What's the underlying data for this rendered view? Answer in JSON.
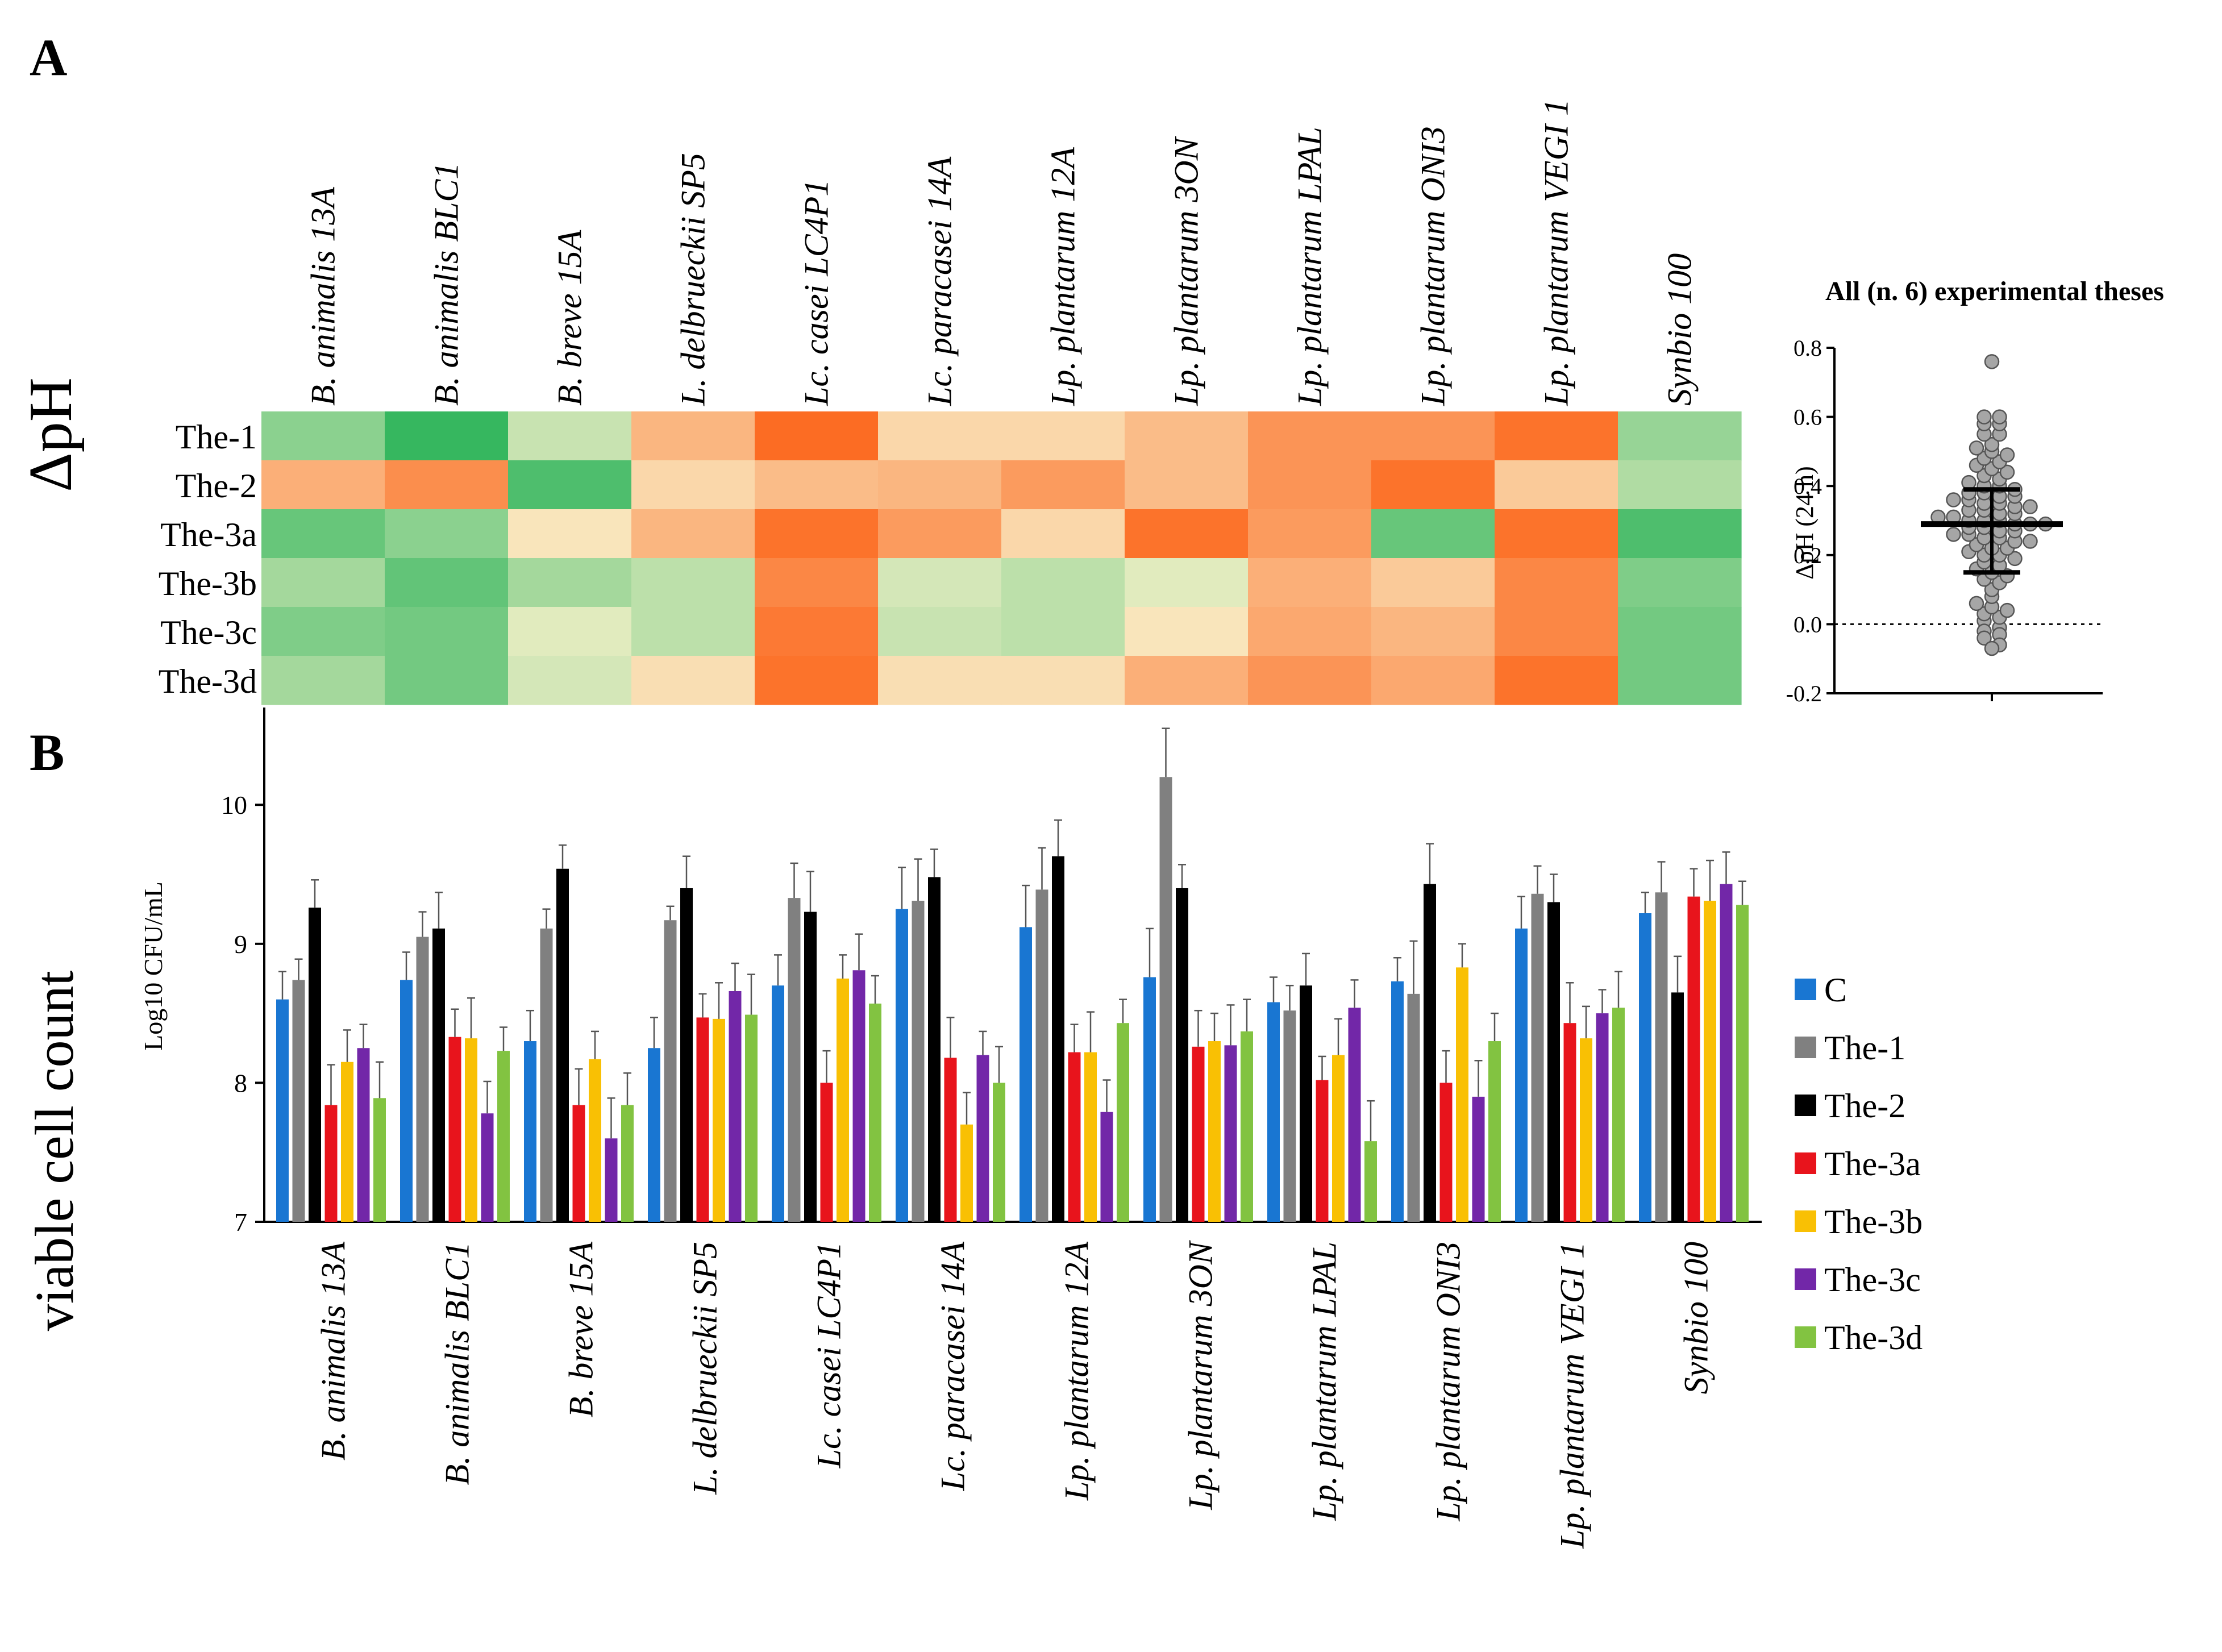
{
  "figure": {
    "panel_a_letter": "A",
    "panel_b_letter": "B",
    "panel_a_side_label": "ΔpH",
    "panel_b_side_label": "viable cell count"
  },
  "chart_data": [
    {
      "type": "heatmap",
      "panel": "A",
      "title": "",
      "columns": [
        "B. animalis 13A",
        "B. animalis BLC1",
        "B. breve 15A",
        "L. delbrueckii SP5",
        "Lc. casei LC4P1",
        "Lc. paracasei 14A",
        "Lp. plantarum 12A",
        "Lp. plantarum 3ON",
        "Lp. plantarum LPAL",
        "Lp. plantarum ONI3",
        "Lp. plantarum VEGI 1",
        "Synbio 100"
      ],
      "rows": [
        "The-1",
        "The-2",
        "The-3a",
        "The-3b",
        "The-3c",
        "The-3d"
      ],
      "color_scale": {
        "low": "#f9f2cc",
        "high_green": "#05a844",
        "high_orange": "#fc6c23"
      },
      "values": [
        [
          0.45,
          0.8,
          0.2,
          -0.45,
          -1.0,
          -0.2,
          -0.2,
          -0.4,
          -0.7,
          -0.7,
          -0.95,
          0.4
        ],
        [
          -0.5,
          -0.75,
          0.7,
          -0.2,
          -0.4,
          -0.45,
          -0.65,
          -0.4,
          -0.7,
          -0.95,
          -0.3,
          0.3
        ],
        [
          0.6,
          0.45,
          -0.1,
          -0.45,
          -0.95,
          -0.65,
          -0.2,
          -0.95,
          -0.65,
          0.6,
          -0.95,
          0.7
        ],
        [
          0.35,
          0.62,
          0.35,
          0.25,
          -0.8,
          0.15,
          0.25,
          0.1,
          -0.5,
          -0.3,
          -0.8,
          0.5
        ],
        [
          0.5,
          0.55,
          0.1,
          0.25,
          -0.9,
          0.2,
          0.25,
          -0.1,
          -0.55,
          -0.45,
          -0.8,
          0.55
        ],
        [
          0.35,
          0.55,
          0.15,
          -0.15,
          -0.95,
          -0.15,
          -0.15,
          -0.5,
          -0.7,
          -0.55,
          -0.95,
          0.55
        ]
      ]
    },
    {
      "type": "scatter",
      "panel": "A",
      "title": "All (n. 6) experimental theses",
      "xlabel": "",
      "ylabel": "ΔpH (24 h)",
      "ylim": [
        -0.2,
        0.8
      ],
      "yticks": [
        "0.8",
        "0.6",
        "0.4",
        "0.2",
        "0.0",
        "-0.2"
      ],
      "reference_line": 0.0,
      "median": 0.29,
      "q1": 0.15,
      "q3": 0.39,
      "values": [
        0.76,
        0.6,
        0.6,
        0.58,
        0.58,
        0.55,
        0.55,
        0.52,
        0.51,
        0.5,
        0.49,
        0.48,
        0.47,
        0.46,
        0.45,
        0.44,
        0.43,
        0.42,
        0.41,
        0.4,
        0.4,
        0.39,
        0.38,
        0.38,
        0.37,
        0.37,
        0.36,
        0.36,
        0.35,
        0.35,
        0.34,
        0.34,
        0.33,
        0.33,
        0.32,
        0.32,
        0.31,
        0.31,
        0.3,
        0.3,
        0.3,
        0.29,
        0.29,
        0.29,
        0.28,
        0.28,
        0.27,
        0.27,
        0.26,
        0.26,
        0.25,
        0.25,
        0.24,
        0.24,
        0.23,
        0.22,
        0.22,
        0.21,
        0.2,
        0.2,
        0.19,
        0.18,
        0.17,
        0.16,
        0.15,
        0.14,
        0.13,
        0.12,
        0.1,
        0.08,
        0.06,
        0.05,
        0.04,
        0.03,
        0.02,
        0.01,
        -0.01,
        -0.02,
        -0.03,
        -0.04,
        -0.06,
        -0.07
      ]
    },
    {
      "type": "bar",
      "panel": "B",
      "title": "",
      "xlabel": "",
      "ylabel": "Log10 CFU/mL",
      "ylim": [
        7,
        10.7
      ],
      "yticks": [
        "10",
        "9",
        "8",
        "7"
      ],
      "legend_position": "right",
      "categories": [
        "B. animalis 13A",
        "B. animalis BLC1",
        "B. breve 15A",
        "L. delbrueckii SP5",
        "Lc. casei LC4P1",
        "Lc. paracasei 14A",
        "Lp. plantarum 12A",
        "Lp. plantarum 3ON",
        "Lp. plantarum LPAL",
        "Lp. plantarum ONI3",
        "Lp. plantarum VEGI 1",
        "Synbio 100"
      ],
      "series": [
        {
          "name": "C",
          "color": "#1976d2",
          "values": [
            8.6,
            8.74,
            8.3,
            8.25,
            8.7,
            9.25,
            9.12,
            8.76,
            8.58,
            8.73,
            9.11,
            9.22
          ],
          "errors": [
            0.2,
            0.2,
            0.22,
            0.22,
            0.22,
            0.3,
            0.3,
            0.35,
            0.18,
            0.17,
            0.23,
            0.15
          ]
        },
        {
          "name": "The-1",
          "color": "#808080",
          "values": [
            8.74,
            9.05,
            9.11,
            9.17,
            9.33,
            9.31,
            9.39,
            10.2,
            8.52,
            8.64,
            9.36,
            9.37
          ],
          "errors": [
            0.15,
            0.18,
            0.14,
            0.1,
            0.25,
            0.3,
            0.3,
            0.35,
            0.18,
            0.38,
            0.2,
            0.22
          ]
        },
        {
          "name": "The-2",
          "color": "#000000",
          "values": [
            9.26,
            9.11,
            9.54,
            9.4,
            9.23,
            9.48,
            9.63,
            9.4,
            8.7,
            9.43,
            9.3,
            8.65
          ]
        },
        {
          "name": "The-3a",
          "color": "#e8141c",
          "values": [
            7.84,
            8.33,
            7.84,
            8.47,
            8.0,
            8.18,
            8.22,
            8.26,
            8.02,
            8.0,
            8.43,
            9.34
          ]
        },
        {
          "name": "The-3b",
          "color": "#f9c004",
          "values": [
            8.15,
            8.32,
            8.17,
            8.46,
            8.75,
            7.7,
            8.22,
            8.3,
            8.2,
            8.83,
            8.32,
            9.31
          ]
        },
        {
          "name": "The-3c",
          "color": "#7227a8",
          "values": [
            8.25,
            7.78,
            7.6,
            8.66,
            8.81,
            8.2,
            7.79,
            8.27,
            8.54,
            7.9,
            8.5,
            9.43
          ]
        },
        {
          "name": "The-3d",
          "color": "#82c341",
          "values": [
            7.89,
            8.23,
            7.84,
            8.49,
            8.57,
            8.0,
            8.43,
            8.37,
            7.58,
            8.3,
            8.54,
            9.28
          ]
        }
      ]
    }
  ]
}
